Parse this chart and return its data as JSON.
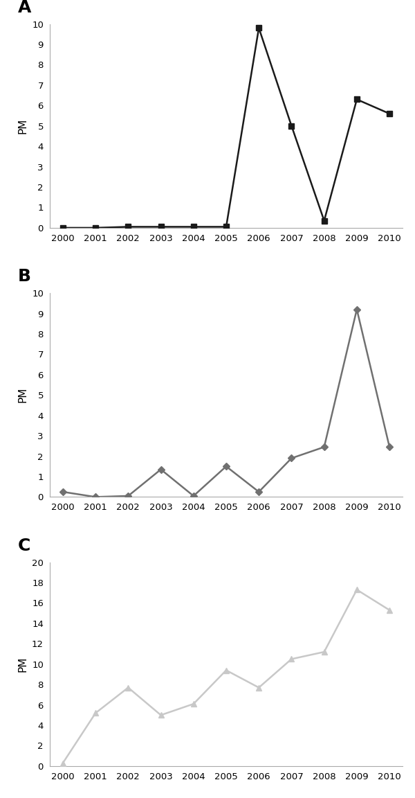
{
  "years": [
    2000,
    2001,
    2002,
    2003,
    2004,
    2005,
    2006,
    2007,
    2008,
    2009,
    2010
  ],
  "panel_A": {
    "label": "A",
    "values": [
      0.0,
      0.0,
      0.05,
      0.05,
      0.05,
      0.05,
      9.8,
      5.0,
      0.35,
      6.3,
      5.6
    ],
    "color": "#1a1a1a",
    "marker": "s",
    "markersize": 6,
    "ylim": [
      0,
      10
    ],
    "yticks": [
      0,
      1,
      2,
      3,
      4,
      5,
      6,
      7,
      8,
      9,
      10
    ]
  },
  "panel_B": {
    "label": "B",
    "values": [
      0.25,
      0.0,
      0.05,
      1.35,
      0.05,
      1.5,
      0.25,
      1.9,
      2.45,
      9.2,
      2.45
    ],
    "color": "#707070",
    "marker": "D",
    "markersize": 5,
    "ylim": [
      0,
      10
    ],
    "yticks": [
      0,
      1,
      2,
      3,
      4,
      5,
      6,
      7,
      8,
      9,
      10
    ]
  },
  "panel_C": {
    "label": "C",
    "values": [
      0.3,
      5.2,
      7.7,
      5.0,
      6.1,
      9.4,
      7.7,
      10.5,
      11.2,
      17.3,
      15.3
    ],
    "color": "#c8c8c8",
    "marker": "^",
    "markersize": 6,
    "ylim": [
      0,
      20
    ],
    "yticks": [
      0,
      2,
      4,
      6,
      8,
      10,
      12,
      14,
      16,
      18,
      20
    ]
  },
  "ylabel": "PM",
  "ylabel_fontsize": 11,
  "label_fontsize": 18,
  "tick_fontsize": 9.5,
  "linewidth": 1.8,
  "background_color": "#ffffff",
  "spine_color": "#aaaaaa",
  "xlim": [
    1999.6,
    2010.4
  ]
}
